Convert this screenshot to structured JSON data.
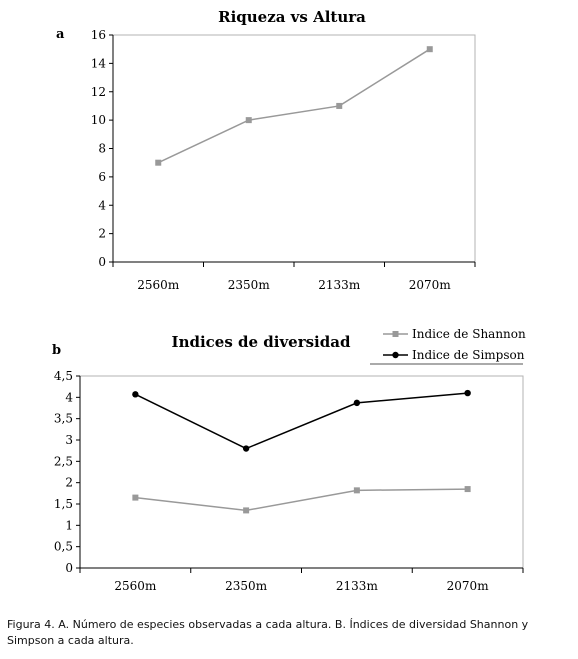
{
  "chart_data": [
    {
      "panel": "a",
      "type": "line",
      "title": "Riqueza vs Altura",
      "categories": [
        "2560m",
        "2350m",
        "2133m",
        "2070m"
      ],
      "series": [
        {
          "values": [
            7,
            10,
            11,
            15
          ],
          "color": "#999999",
          "marker": "square"
        }
      ],
      "ylim": [
        0,
        16
      ],
      "yticks": [
        0,
        2,
        4,
        6,
        8,
        10,
        12,
        14,
        16
      ],
      "grid": false,
      "legend": "none"
    },
    {
      "panel": "b",
      "type": "line",
      "title": "Indices de diversidad",
      "categories": [
        "2560m",
        "2350m",
        "2133m",
        "2070m"
      ],
      "series": [
        {
          "name": "Indice de Shannon",
          "values": [
            1.65,
            1.35,
            1.82,
            1.85
          ],
          "color": "#999999",
          "marker": "square"
        },
        {
          "name": "Indice de Simpson",
          "values": [
            4.07,
            2.8,
            3.87,
            4.1
          ],
          "color": "#000000",
          "marker": "circle"
        }
      ],
      "ylim": [
        0,
        4.5
      ],
      "yticks": [
        "0",
        "0,5",
        "1",
        "1,5",
        "2",
        "2,5",
        "3",
        "3,5",
        "4",
        "4,5"
      ],
      "ytick_values": [
        0,
        0.5,
        1,
        1.5,
        2,
        2.5,
        3,
        3.5,
        4,
        4.5
      ],
      "grid": false,
      "legend": "top-right"
    }
  ],
  "caption": "Figura 4. A. Número de especies observadas a cada altura. B. Índices de diversidad Shannon y Simpson a cada altura."
}
